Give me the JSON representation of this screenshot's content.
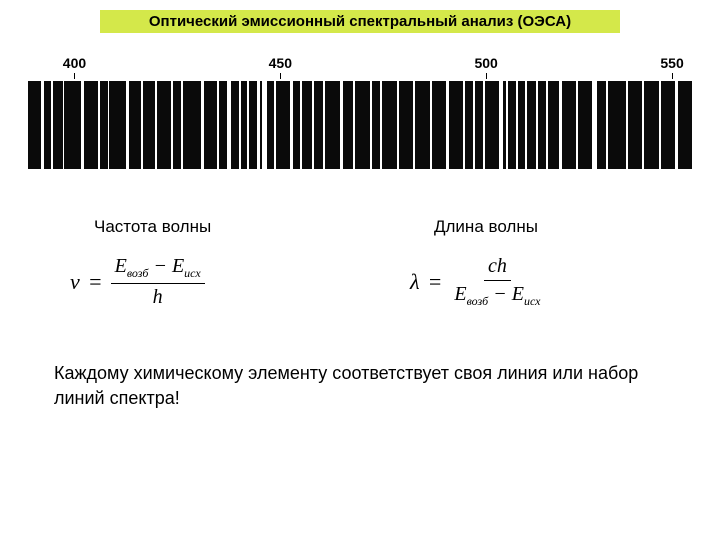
{
  "title": "Оптический эмиссионный спектральный анализ (ОЭСА)",
  "axis": {
    "labels": [
      {
        "value": "400",
        "pos_pct": 7
      },
      {
        "value": "450",
        "pos_pct": 38
      },
      {
        "value": "500",
        "pos_pct": 69
      },
      {
        "value": "550",
        "pos_pct": 97
      }
    ],
    "tick_color": "#000000"
  },
  "spectrum": {
    "background": "#0a0a0a",
    "line_color": "#ffffff",
    "lines_pct": [
      {
        "x": 2.0,
        "w": 0.4
      },
      {
        "x": 3.5,
        "w": 0.3
      },
      {
        "x": 5.2,
        "w": 0.25
      },
      {
        "x": 8.0,
        "w": 0.5
      },
      {
        "x": 10.5,
        "w": 0.3
      },
      {
        "x": 12.0,
        "w": 0.25
      },
      {
        "x": 14.8,
        "w": 0.4
      },
      {
        "x": 17.0,
        "w": 0.3
      },
      {
        "x": 19.2,
        "w": 0.25
      },
      {
        "x": 21.5,
        "w": 0.4
      },
      {
        "x": 23.0,
        "w": 0.3
      },
      {
        "x": 26.0,
        "w": 0.5
      },
      {
        "x": 28.5,
        "w": 0.3
      },
      {
        "x": 30.0,
        "w": 0.5
      },
      {
        "x": 31.8,
        "w": 0.3
      },
      {
        "x": 33.0,
        "w": 0.25
      },
      {
        "x": 34.5,
        "w": 0.4
      },
      {
        "x": 35.2,
        "w": 0.8
      },
      {
        "x": 37.0,
        "w": 0.3
      },
      {
        "x": 39.5,
        "w": 0.4
      },
      {
        "x": 41.0,
        "w": 0.25
      },
      {
        "x": 42.8,
        "w": 0.3
      },
      {
        "x": 44.5,
        "w": 0.25
      },
      {
        "x": 47.0,
        "w": 0.4
      },
      {
        "x": 49.0,
        "w": 0.3
      },
      {
        "x": 51.5,
        "w": 0.3
      },
      {
        "x": 53.0,
        "w": 0.25
      },
      {
        "x": 55.5,
        "w": 0.4
      },
      {
        "x": 58.0,
        "w": 0.3
      },
      {
        "x": 60.5,
        "w": 0.3
      },
      {
        "x": 63.0,
        "w": 0.4
      },
      {
        "x": 65.5,
        "w": 0.3
      },
      {
        "x": 67.0,
        "w": 0.25
      },
      {
        "x": 68.5,
        "w": 0.4
      },
      {
        "x": 71.0,
        "w": 0.6
      },
      {
        "x": 72.0,
        "w": 0.3
      },
      {
        "x": 73.5,
        "w": 0.3
      },
      {
        "x": 74.8,
        "w": 0.4
      },
      {
        "x": 76.5,
        "w": 0.3
      },
      {
        "x": 78.0,
        "w": 0.25
      },
      {
        "x": 80.0,
        "w": 0.4
      },
      {
        "x": 82.5,
        "w": 0.3
      },
      {
        "x": 85.0,
        "w": 0.7
      },
      {
        "x": 87.0,
        "w": 0.3
      },
      {
        "x": 90.0,
        "w": 0.4
      },
      {
        "x": 92.5,
        "w": 0.3
      },
      {
        "x": 95.0,
        "w": 0.3
      },
      {
        "x": 97.5,
        "w": 0.4
      }
    ]
  },
  "formula1": {
    "label": "Частота волны",
    "lhs": "ν",
    "eq": "=",
    "num_a": "E",
    "num_a_sub": "возб",
    "minus": "−",
    "num_b": "E",
    "num_b_sub": "исх",
    "den": "h"
  },
  "formula2": {
    "label": "Длина волны",
    "lhs": "λ",
    "eq": "=",
    "num": "ch",
    "den_a": "E",
    "den_a_sub": "возб",
    "minus": "−",
    "den_b": "E",
    "den_b_sub": "исх"
  },
  "conclusion": "Каждому химическому элементу соответствует своя линия или набор линий спектра!",
  "colors": {
    "title_bg": "#d4e84a",
    "page_bg": "#ffffff",
    "text": "#000000"
  }
}
